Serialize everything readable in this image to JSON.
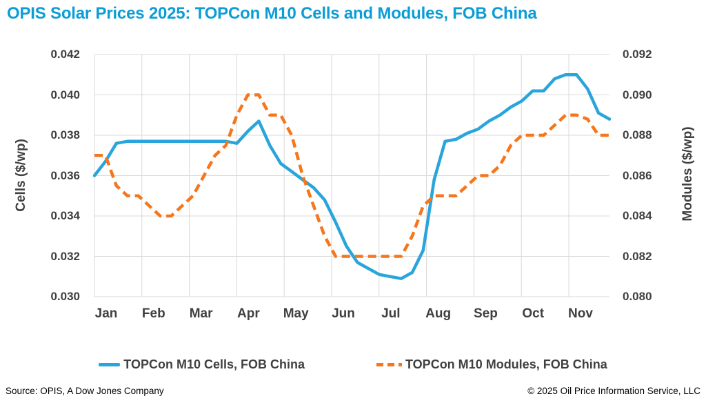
{
  "header": {
    "title": "OPIS Solar Prices 2025: TOPCon M10 Cells and Modules, FOB China"
  },
  "legend": {
    "items": [
      {
        "label": "TOPCon M10 Cells, FOB China",
        "style": "solid",
        "color": "#29a5db"
      },
      {
        "label": "TOPCon M10 Modules, FOB China",
        "style": "dashed",
        "color": "#f5761b"
      }
    ]
  },
  "footer": {
    "source": "Source: OPIS, A Dow Jones Company",
    "copyright": "© 2025 Oil Price Information Service, LLC"
  },
  "colors": {
    "title_blue": "#0b9dd6",
    "cells_blue": "#29a5db",
    "modules_orange": "#f5761b",
    "label_gray": "#404040",
    "grid_gray": "#d9d9d9"
  },
  "chart_data": {
    "type": "line",
    "title": "OPIS Solar Prices 2025: TOPCon M10 Cells and Modules, FOB China",
    "grid": true,
    "legend_position": "bottom",
    "x_axis": {
      "tick_labels": [
        "Jan",
        "Feb",
        "Mar",
        "Apr",
        "May",
        "Jun",
        "Jul",
        "Aug",
        "Sep",
        "Oct",
        "Nov"
      ],
      "frequency": "weekly"
    },
    "left_axis": {
      "title": "Cells ($/wp)",
      "min": 0.03,
      "max": 0.042,
      "step": 0.002,
      "tick_labels": [
        "0.042",
        "0.040",
        "0.038",
        "0.036",
        "0.034",
        "0.032",
        "0.030"
      ]
    },
    "right_axis": {
      "title": "Modules ($/wp)",
      "min": 0.08,
      "max": 0.092,
      "step": 0.002,
      "tick_labels": [
        "0.092",
        "0.090",
        "0.088",
        "0.086",
        "0.084",
        "0.082",
        "0.080"
      ]
    },
    "series": [
      {
        "name": "TOPCon M10 Cells, FOB China",
        "axis": "left",
        "style": "solid",
        "color": "#29a5db",
        "values": [
          0.036,
          0.0367,
          0.0376,
          0.0377,
          0.0377,
          0.0377,
          0.0377,
          0.0377,
          0.0377,
          0.0377,
          0.0377,
          0.0377,
          0.0377,
          0.0376,
          0.0382,
          0.0387,
          0.0375,
          0.0366,
          0.0362,
          0.0358,
          0.0354,
          0.0348,
          0.0337,
          0.0325,
          0.0317,
          0.0314,
          0.0311,
          0.031,
          0.0309,
          0.0312,
          0.0323,
          0.0358,
          0.0377,
          0.0378,
          0.0381,
          0.0383,
          0.0387,
          0.039,
          0.0394,
          0.0397,
          0.0402,
          0.0402,
          0.0408,
          0.041,
          0.041,
          0.0403,
          0.0391,
          0.0388
        ]
      },
      {
        "name": "TOPCon M10 Modules, FOB China",
        "axis": "right",
        "style": "dashed",
        "color": "#f5761b",
        "values": [
          0.087,
          0.087,
          0.0855,
          0.085,
          0.085,
          0.0845,
          0.084,
          0.084,
          0.0845,
          0.085,
          0.086,
          0.087,
          0.0875,
          0.089,
          0.09,
          0.09,
          0.089,
          0.089,
          0.088,
          0.086,
          0.0845,
          0.083,
          0.082,
          0.082,
          0.082,
          0.082,
          0.082,
          0.082,
          0.082,
          0.083,
          0.0845,
          0.085,
          0.085,
          0.085,
          0.0855,
          0.086,
          0.086,
          0.0865,
          0.0875,
          0.088,
          0.088,
          0.088,
          0.0885,
          0.089,
          0.089,
          0.0888,
          0.088,
          0.088
        ]
      }
    ]
  }
}
